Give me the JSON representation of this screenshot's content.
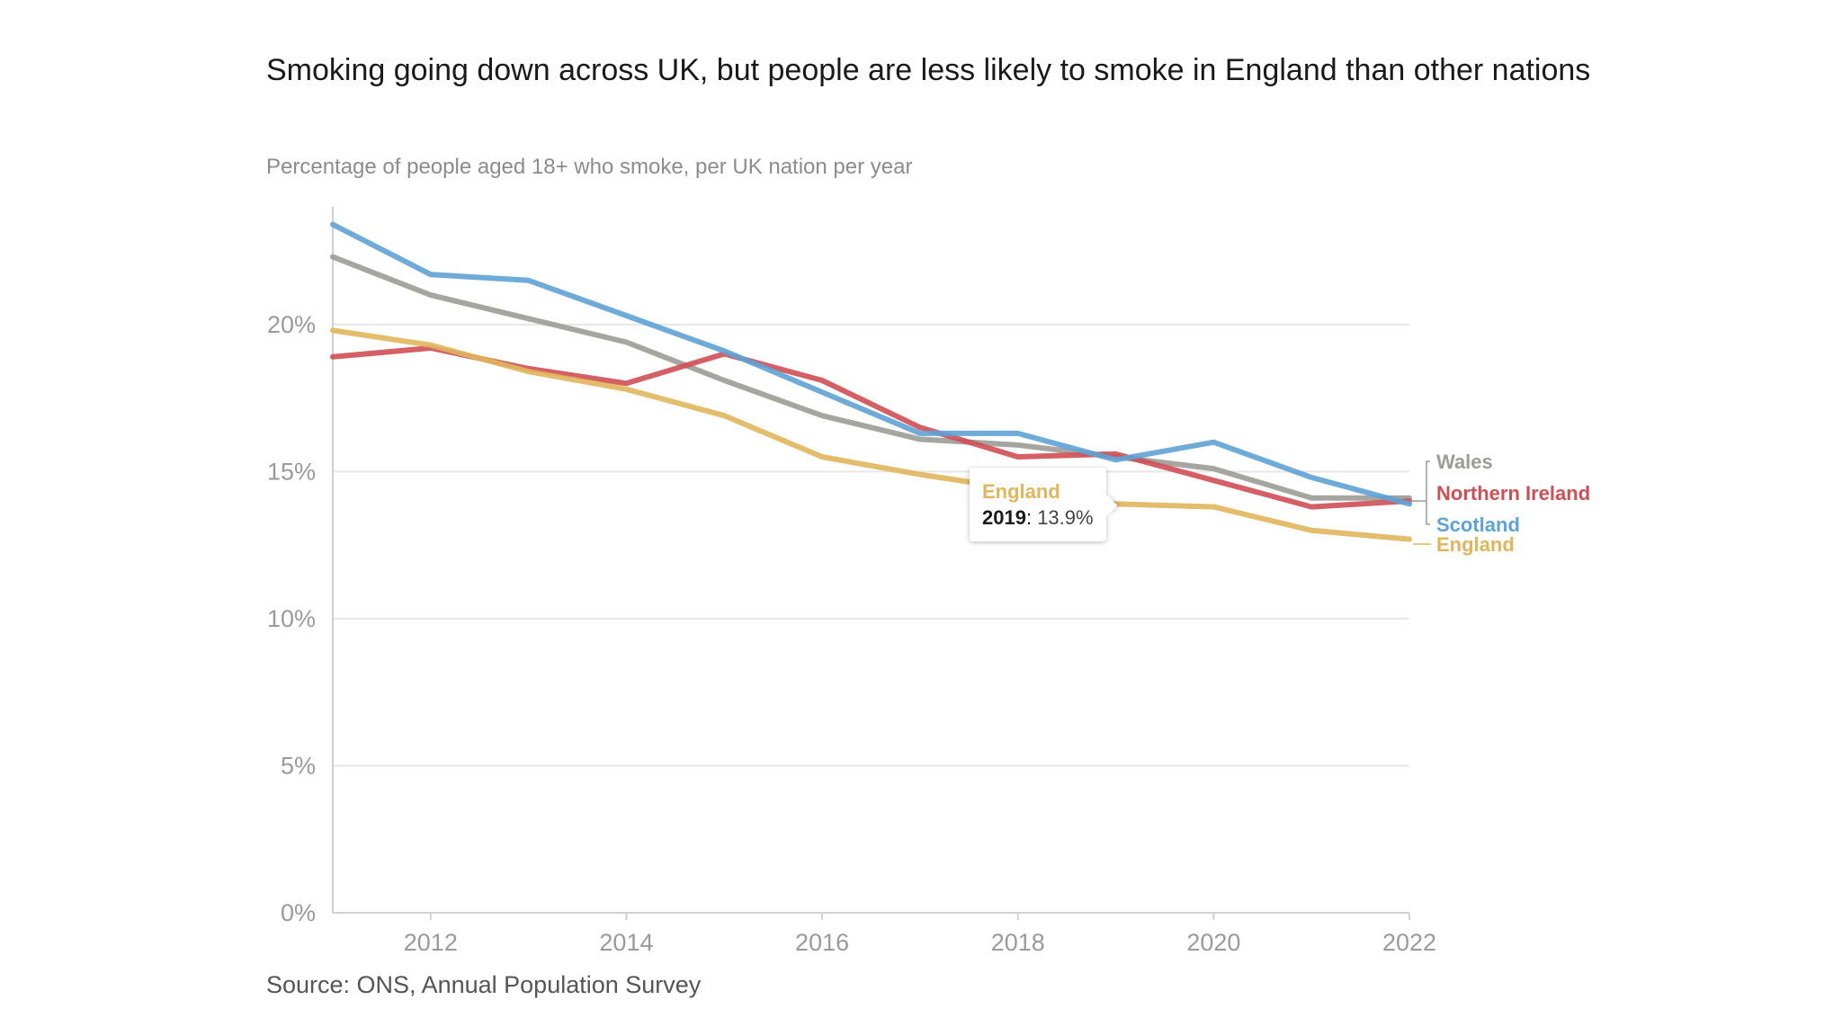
{
  "page": {
    "title": "Smoking going down across UK, but people are less likely to smoke in England than other nations",
    "subtitle": "Percentage of people aged 18+ who smoke, per UK nation per year",
    "source": "Source: ONS, Annual Population Survey"
  },
  "colors": {
    "england": "#e0b55c",
    "wales": "#9c9c97",
    "northern_ireland": "#cf4f55",
    "scotland": "#5fa2d5",
    "grid": "#e6e6e6",
    "axis": "#d0d0d0"
  },
  "tooltip": {
    "series": "England",
    "year": "2019",
    "separator": ": ",
    "value": "13.9%"
  },
  "chart_data": {
    "type": "line",
    "title": "Smoking going down across UK, but people are less likely to smoke in England than other nations",
    "subtitle": "Percentage of people aged 18+ who smoke, per UK nation per year",
    "xlabel": "",
    "ylabel": "",
    "x": [
      2011,
      2012,
      2013,
      2014,
      2015,
      2016,
      2017,
      2018,
      2019,
      2020,
      2021,
      2022
    ],
    "xlim": [
      2011,
      2022
    ],
    "ylim": [
      0,
      24
    ],
    "x_ticks": [
      2012,
      2014,
      2016,
      2018,
      2020,
      2022
    ],
    "x_tick_labels": [
      "2012",
      "2014",
      "2016",
      "2018",
      "2020",
      "2022"
    ],
    "y_ticks": [
      0,
      5,
      10,
      15,
      20
    ],
    "y_tick_labels": [
      "0%",
      "5%",
      "10%",
      "15%",
      "20%"
    ],
    "grid": true,
    "legend": "direct labels at right end of lines",
    "series": [
      {
        "name": "Wales",
        "key": "wales",
        "label": "Wales",
        "values": [
          22.3,
          21.0,
          20.2,
          19.4,
          18.1,
          16.9,
          16.1,
          15.9,
          15.5,
          15.1,
          14.1,
          14.1
        ]
      },
      {
        "name": "Northern Ireland",
        "key": "northern_ireland",
        "label": "Northern Ireland",
        "values": [
          18.9,
          19.2,
          18.5,
          18.0,
          19.0,
          18.1,
          16.5,
          15.5,
          15.6,
          14.7,
          13.8,
          14.0
        ]
      },
      {
        "name": "Scotland",
        "key": "scotland",
        "label": "Scotland",
        "values": [
          23.4,
          21.7,
          21.5,
          20.3,
          19.1,
          17.7,
          16.3,
          16.3,
          15.4,
          16.0,
          14.8,
          13.9
        ]
      },
      {
        "name": "England",
        "key": "england",
        "label": "England",
        "values": [
          19.8,
          19.3,
          18.4,
          17.8,
          16.9,
          15.5,
          14.9,
          14.4,
          13.9,
          13.8,
          13.0,
          12.7
        ]
      }
    ],
    "annotation": {
      "series": "England",
      "x": 2019,
      "text": "13.9%"
    }
  }
}
